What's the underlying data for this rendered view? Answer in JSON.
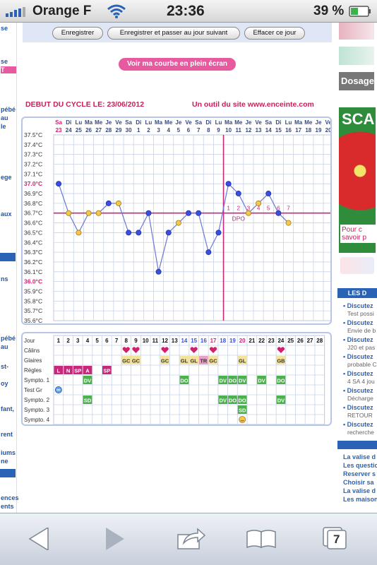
{
  "status": {
    "carrier": "Orange F",
    "time": "23:36",
    "battery": "39 %"
  },
  "toolbar": {
    "save_label": "Enregistrer",
    "save_next_label": "Enregistrer et passer au jour suivant",
    "clear_label": "Effacer ce jour",
    "tabs_count": "7"
  },
  "fullscreen_label": "Voir ma courbe en plein écran",
  "cycle_title": "DEBUT DU CYCLE LE: 23/06/2012",
  "site_note": "Un outil du site www.enceinte.com",
  "left_fragments": [
    "se",
    "se",
    "T",
    "pébé",
    "au",
    "le",
    "ege",
    "aux",
    "ns",
    "pébé",
    "au",
    "st-",
    "oy",
    "fant,",
    "rent",
    "iums",
    "ne",
    "ences",
    "ents"
  ],
  "right_col": {
    "dosage": "Dosage",
    "ad_text": "SCA",
    "ad_bottom": "Pour c savoir p",
    "les_header": "LES D",
    "discussions": [
      {
        "title": "Discutez",
        "sub": "Test possi"
      },
      {
        "title": "Discutez",
        "sub": "Envie de b"
      },
      {
        "title": "Discutez",
        "sub": "J20 et pas"
      },
      {
        "title": "Discutez",
        "sub": "probable C"
      },
      {
        "title": "Discutez",
        "sub": "4 SA 4 jou"
      },
      {
        "title": "Discutez",
        "sub": "Décharge"
      },
      {
        "title": "Discutez",
        "sub": "RETOUR"
      },
      {
        "title": "Discutez",
        "sub": "recherche"
      }
    ],
    "links": [
      "La valise d",
      "Les questio",
      "Reserver s",
      "Choisir sa",
      "La valise d",
      "Les maison"
    ]
  },
  "chart_data": {
    "type": "line",
    "days": [
      "Sa",
      "Di",
      "Lu",
      "Ma",
      "Me",
      "Je",
      "Ve",
      "Sa",
      "Di",
      "Lu",
      "Ma",
      "Me",
      "Je",
      "Ve",
      "Sa",
      "Di",
      "Lu",
      "Ma",
      "Me",
      "Je",
      "Ve",
      "Sa",
      "Di",
      "Lu",
      "Ma",
      "Me",
      "Je",
      "Ve"
    ],
    "dates": [
      "23",
      "24",
      "25",
      "26",
      "27",
      "28",
      "29",
      "30",
      "1",
      "2",
      "3",
      "4",
      "5",
      "6",
      "7",
      "8",
      "9",
      "10",
      "11",
      "12",
      "13",
      "14",
      "15",
      "16",
      "17",
      "18",
      "19",
      "20"
    ],
    "y_ticks": [
      "37.5°C",
      "37.4°C",
      "37.3°C",
      "37.2°C",
      "37.1°C",
      "37.0°C",
      "36.9°C",
      "36.8°C",
      "36.7°C",
      "36.6°C",
      "36.5°C",
      "36.4°C",
      "36.3°C",
      "36.2°C",
      "36.1°C",
      "36.0°C",
      "35.9°C",
      "35.8°C",
      "35.7°C",
      "35.6°C"
    ],
    "ylim": [
      35.6,
      37.5
    ],
    "temperatures": [
      37.0,
      36.7,
      36.5,
      36.7,
      36.7,
      36.8,
      36.8,
      36.5,
      36.5,
      36.7,
      36.1,
      36.5,
      36.6,
      36.7,
      36.7,
      36.3,
      36.5,
      37.0,
      36.9,
      36.7,
      36.8,
      36.9,
      36.7,
      36.6
    ],
    "point_colors": [
      "blue",
      "yellow",
      "yellow",
      "yellow",
      "yellow",
      "blue",
      "yellow",
      "blue",
      "blue",
      "blue",
      "blue",
      "blue",
      "yellow",
      "blue",
      "blue",
      "blue",
      "blue",
      "blue",
      "blue",
      "yellow",
      "yellow",
      "blue",
      "blue",
      "yellow"
    ],
    "coverline": 36.7,
    "ovulation_day_index": 16,
    "dpo_labels": [
      "1",
      "2",
      "3",
      "4",
      "5",
      "6",
      "7"
    ],
    "dpo_text": "DPO"
  },
  "grid_table": {
    "row_labels": [
      "Jour",
      "Câlins",
      "Glaires",
      "Règles",
      "Sympto. 1",
      "Test Gr",
      "Sympto. 2",
      "Sympto. 3",
      "Sympto. 4"
    ],
    "day_numbers": [
      "1",
      "2",
      "3",
      "4",
      "5",
      "6",
      "7",
      "8",
      "9",
      "10",
      "11",
      "12",
      "13",
      "14",
      "15",
      "16",
      "17",
      "18",
      "19",
      "20",
      "21",
      "22",
      "23",
      "24",
      "25",
      "26",
      "27",
      "28"
    ],
    "calins_days": [
      8,
      9,
      12,
      15,
      17,
      24
    ],
    "glaires": [
      {
        "day": 8,
        "v": "GC"
      },
      {
        "day": 9,
        "v": "GC"
      },
      {
        "day": 12,
        "v": "GC"
      },
      {
        "day": 14,
        "v": "GL"
      },
      {
        "day": 15,
        "v": "GL"
      },
      {
        "day": 16,
        "v": "TR"
      },
      {
        "day": 17,
        "v": "GC"
      },
      {
        "day": 20,
        "v": "GL"
      },
      {
        "day": 24,
        "v": "GB"
      }
    ],
    "regles": [
      {
        "day": 1,
        "v": "L"
      },
      {
        "day": 2,
        "v": "N"
      },
      {
        "day": 3,
        "v": "SP"
      },
      {
        "day": 4,
        "v": "A"
      },
      {
        "day": 6,
        "v": "SP"
      }
    ],
    "sympto1": [
      {
        "day": 4,
        "v": "DV"
      },
      {
        "day": 14,
        "v": "DO"
      },
      {
        "day": 18,
        "v": "DV"
      },
      {
        "day": 19,
        "v": "DO"
      },
      {
        "day": 20,
        "v": "DV"
      },
      {
        "day": 22,
        "v": "DV"
      },
      {
        "day": 24,
        "v": "DO"
      }
    ],
    "sympto2": [
      {
        "day": 4,
        "v": "SD"
      },
      {
        "day": 18,
        "v": "DV"
      },
      {
        "day": 19,
        "v": "DO"
      },
      {
        "day": 20,
        "v": "DO"
      },
      {
        "day": 24,
        "v": "DV"
      }
    ],
    "sympto3": [
      {
        "day": 20,
        "v": "SD"
      }
    ]
  }
}
